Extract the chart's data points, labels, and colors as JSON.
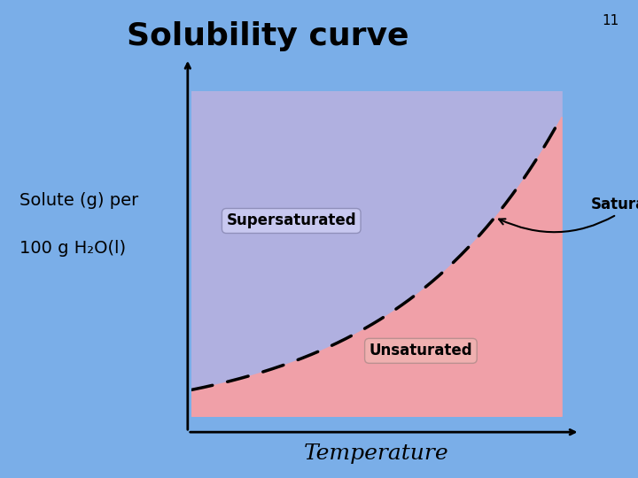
{
  "title": "Solubility curve",
  "title_fontsize": 26,
  "title_fontweight": "bold",
  "slide_number": "11",
  "bg_color": "#7aaee8",
  "plot_bg_color": "#ffffff",
  "xlabel": "Temperature",
  "ylabel_line1": "Solute (g) per",
  "ylabel_line2": "100 g H₂O(l)",
  "xlabel_fontsize": 18,
  "ylabel_fontsize": 14,
  "supersaturated_color": "#b0b0e0",
  "unsaturated_color": "#f0a0a8",
  "supersaturated_label": "Supersaturated",
  "unsaturated_label": "Unsaturated",
  "saturated_label": "Saturated",
  "label_fontsize": 12,
  "curve_color": "black",
  "curve_linewidth": 2.5,
  "exp_scale": 2.2,
  "y_min": 0.08,
  "y_max": 0.92
}
